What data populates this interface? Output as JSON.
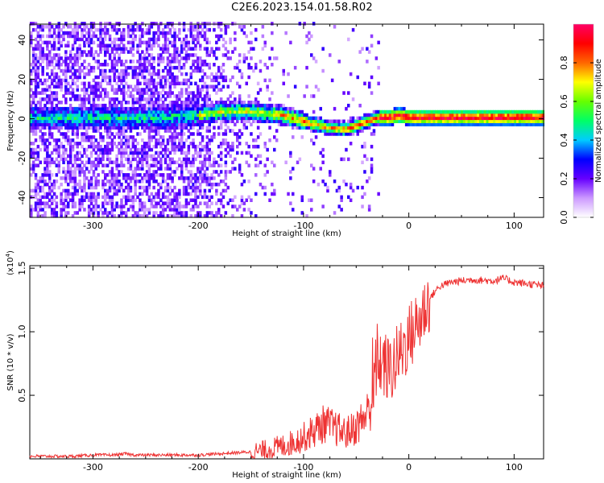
{
  "title": "C2E6.2023.154.01.58.R02",
  "chart_data": [
    {
      "type": "heatmap",
      "xlabel": "Height of straight line (km)",
      "ylabel": "Frequency (Hz)",
      "xlim": [
        -360,
        128
      ],
      "ylim": [
        -50,
        48
      ],
      "xticks": [
        -300,
        -200,
        -100,
        0,
        100
      ],
      "xtick_labels": [
        "-300",
        "-200",
        "-100",
        "0",
        "100"
      ],
      "yticks": [
        -40,
        -20,
        0,
        20,
        40
      ],
      "ytick_labels": [
        "-40",
        "-20",
        "0",
        "20",
        "40"
      ],
      "colorbar": {
        "label": "Normalized spectral amplitude",
        "range": [
          0,
          1
        ],
        "ticks": [
          0.0,
          0.2,
          0.4,
          0.6,
          0.8
        ],
        "tick_labels": [
          "0.0",
          "0.2",
          "0.4",
          "0.6",
          "0.8"
        ],
        "colors": [
          "#ffffff",
          "#cc99ff",
          "#6600ff",
          "#0000ff",
          "#00ccff",
          "#00ff66",
          "#66ff00",
          "#ffff00",
          "#ff6600",
          "#ff0000",
          "#ff0066"
        ]
      },
      "ridge_frequency": {
        "x": [
          -320,
          -280,
          -240,
          -200,
          -180,
          -150,
          -120,
          -100,
          -80,
          -60,
          -50,
          -40,
          -30,
          -20,
          -10,
          0,
          20,
          60,
          100,
          128
        ],
        "y": [
          0,
          0,
          0,
          1,
          3,
          3,
          1,
          -2,
          -5,
          -6,
          -4,
          -2,
          0,
          0,
          1,
          0,
          0,
          0,
          0,
          0
        ]
      },
      "grid": false
    },
    {
      "type": "line",
      "xlabel": "Height of straight line (km)",
      "ylabel": "SNR (10 * v/v)",
      "y_multiplier": "(x10",
      "y_multiplier_exp": "4",
      "y_multiplier_close": ")",
      "xlim": [
        -360,
        128
      ],
      "ylim": [
        0,
        1.52
      ],
      "xticks": [
        -300,
        -200,
        -100,
        0,
        100
      ],
      "xtick_labels": [
        "-300",
        "-200",
        "-100",
        "0",
        "100"
      ],
      "yticks": [
        0.5,
        1.0,
        1.5
      ],
      "ytick_labels": [
        "0.5",
        "1.0",
        "1.5"
      ],
      "color": "#ee3333",
      "grid": false,
      "series": [
        {
          "x": [
            -360,
            -340,
            -320,
            -300,
            -280,
            -270,
            -260,
            -240,
            -220,
            -200,
            -180,
            -160,
            -140,
            -130,
            -120,
            -110,
            -100,
            -90,
            -80,
            -70,
            -60,
            -50,
            -40,
            -35,
            -30,
            -25,
            -20,
            -15,
            -10,
            -5,
            0,
            5,
            10,
            15,
            20,
            25,
            30,
            40,
            50,
            60,
            80,
            90,
            100,
            110,
            120,
            128
          ],
          "y": [
            0.02,
            0.02,
            0.02,
            0.03,
            0.03,
            0.04,
            0.03,
            0.03,
            0.03,
            0.03,
            0.04,
            0.05,
            0.06,
            0.08,
            0.1,
            0.13,
            0.17,
            0.22,
            0.28,
            0.24,
            0.2,
            0.25,
            0.35,
            0.45,
            0.8,
            0.75,
            0.7,
            0.72,
            0.8,
            0.88,
            0.95,
            1.02,
            1.08,
            1.18,
            1.26,
            1.32,
            1.36,
            1.39,
            1.4,
            1.41,
            1.4,
            1.42,
            1.39,
            1.38,
            1.37,
            1.36
          ]
        }
      ]
    }
  ]
}
